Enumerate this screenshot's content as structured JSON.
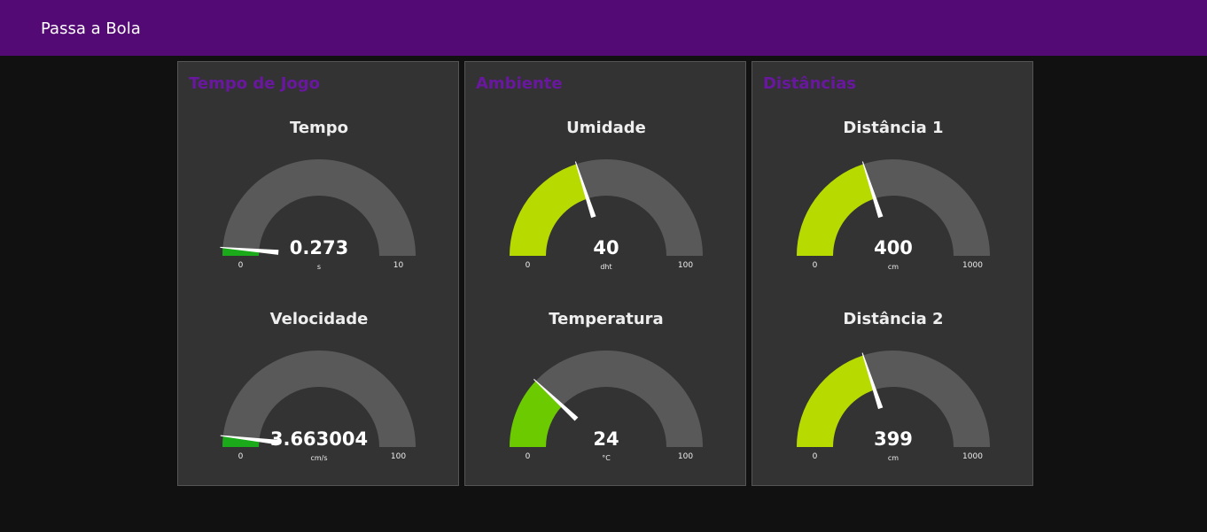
{
  "header": {
    "title": "Passa a Bola"
  },
  "colors": {
    "header_bg": "#540a74",
    "group_title": "#6a17a0",
    "gauge_track": "#595959",
    "needle": "#ffffff"
  },
  "groups": [
    {
      "title": "Tempo de Jogo",
      "gauges": [
        {
          "label": "Tempo",
          "value": 0.273,
          "display": "0.273",
          "unit": "s",
          "min": 0,
          "max": 10,
          "min_label": "0",
          "max_label": "10",
          "color": "#1aaa1a"
        },
        {
          "label": "Velocidade",
          "value": 3.663004,
          "display": "3.663004",
          "unit": "cm/s",
          "min": 0,
          "max": 100,
          "min_label": "0",
          "max_label": "100",
          "color": "#1aaa1a"
        }
      ]
    },
    {
      "title": "Ambiente",
      "gauges": [
        {
          "label": "Umidade",
          "value": 40,
          "display": "40",
          "unit": "dht",
          "min": 0,
          "max": 100,
          "min_label": "0",
          "max_label": "100",
          "color": "#b7db00"
        },
        {
          "label": "Temperatura",
          "value": 24,
          "display": "24",
          "unit": "°C",
          "min": 0,
          "max": 100,
          "min_label": "0",
          "max_label": "100",
          "color": "#6bcb00"
        }
      ]
    },
    {
      "title": "Distâncias",
      "gauges": [
        {
          "label": "Distância 1",
          "value": 400,
          "display": "400",
          "unit": "cm",
          "min": 0,
          "max": 1000,
          "min_label": "0",
          "max_label": "1000",
          "color": "#b7db00"
        },
        {
          "label": "Distância 2",
          "value": 399,
          "display": "399",
          "unit": "cm",
          "min": 0,
          "max": 1000,
          "min_label": "0",
          "max_label": "1000",
          "color": "#b7db00"
        }
      ]
    }
  ]
}
